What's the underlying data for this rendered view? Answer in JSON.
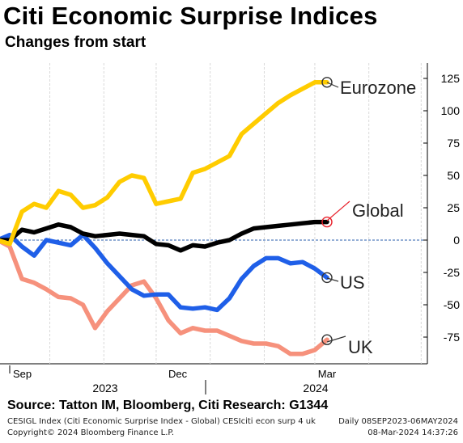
{
  "title": "Citi Economic Surprise Indices",
  "subtitle": "Changes from start",
  "source": "Source: Tatton IM, Bloomberg, Citi Research: G1344",
  "footer": {
    "description": "CESIGL Index (Citi Economic Surprise Index - Global) CESIciti econ surp 4 uk",
    "range": "Daily 08SEP2023-06MAY2024",
    "copyright": "Copyright© 2024 Bloomberg Finance L.P.",
    "timestamp": "08-Mar-2024 14:37:26"
  },
  "colors": {
    "eurozone": "#ffcc00",
    "global": "#000000",
    "us": "#1f5fe8",
    "uk": "#f6917c",
    "zero_line": "#2b5fad",
    "global_marker": "#e8232d"
  },
  "chart_data": {
    "type": "line",
    "title": "Citi Economic Surprise Indices",
    "subtitle": "Changes from start",
    "x_start": "2023-09-08",
    "x_end": "2024-03-08",
    "x_axis": {
      "month_labels": [
        "Sep",
        "Dec",
        "Mar"
      ],
      "year_labels": [
        "2023",
        "2024"
      ]
    },
    "y_axis": {
      "position": "right",
      "ylim": [
        -95,
        135
      ],
      "ticks": [
        125,
        100,
        75,
        50,
        25,
        0,
        -25,
        -50,
        -75
      ]
    },
    "grid": {
      "vertical": true,
      "horizontal": false
    },
    "x": [
      "2023-09-01",
      "2023-09-08",
      "2023-09-15",
      "2023-09-22",
      "2023-09-29",
      "2023-10-06",
      "2023-10-13",
      "2023-10-20",
      "2023-10-27",
      "2023-11-03",
      "2023-11-10",
      "2023-11-17",
      "2023-11-24",
      "2023-12-01",
      "2023-12-08",
      "2023-12-15",
      "2023-12-22",
      "2023-12-29",
      "2024-01-05",
      "2024-01-12",
      "2024-01-19",
      "2024-01-26",
      "2024-02-02",
      "2024-02-09",
      "2024-02-16",
      "2024-02-23",
      "2024-03-01",
      "2024-03-08"
    ],
    "series": [
      {
        "name": "Eurozone",
        "color": "#ffcc00",
        "end_label": "Eurozone",
        "values": [
          0,
          -3,
          22,
          28,
          25,
          38,
          35,
          25,
          27,
          33,
          45,
          50,
          48,
          28,
          30,
          32,
          52,
          55,
          60,
          65,
          82,
          90,
          98,
          106,
          112,
          117,
          122,
          122
        ]
      },
      {
        "name": "Global",
        "color": "#000000",
        "end_label": "Global",
        "values": [
          0,
          0,
          8,
          6,
          9,
          12,
          10,
          5,
          3,
          4,
          5,
          4,
          3,
          -3,
          -4,
          -8,
          -4,
          -5,
          -2,
          0,
          5,
          9,
          10,
          11,
          12,
          13,
          14,
          14
        ]
      },
      {
        "name": "US",
        "color": "#1f5fe8",
        "end_label": "US",
        "values": [
          0,
          4,
          -5,
          -12,
          0,
          -2,
          -4,
          4,
          -6,
          -18,
          -28,
          -38,
          -43,
          -42,
          -42,
          -52,
          -53,
          -52,
          -54,
          -45,
          -30,
          -20,
          -14,
          -14,
          -18,
          -17,
          -22,
          -29
        ]
      },
      {
        "name": "UK",
        "color": "#f6917c",
        "end_label": "UK",
        "values": [
          0,
          -5,
          -30,
          -33,
          -38,
          -44,
          -45,
          -50,
          -68,
          -55,
          -45,
          -35,
          -32,
          -45,
          -62,
          -72,
          -68,
          -70,
          -70,
          -74,
          -78,
          -80,
          -80,
          -82,
          -88,
          -88,
          -85,
          -77
        ]
      }
    ]
  }
}
